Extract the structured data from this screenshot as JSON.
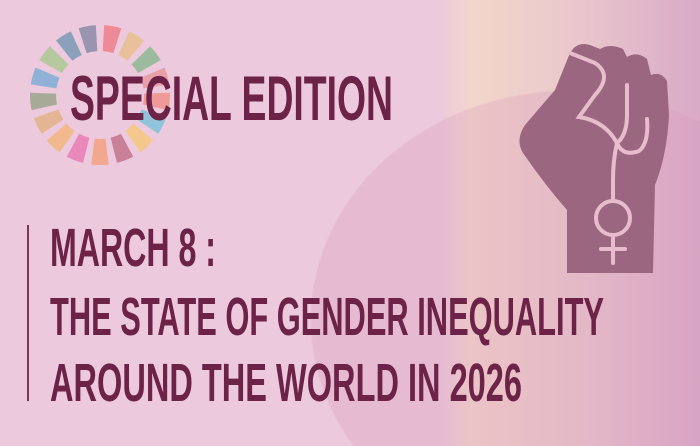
{
  "header": {
    "badge": "SPECIAL EDITION"
  },
  "title": {
    "lines": [
      "MARCH 8 :",
      "THE STATE OF GENDER INEQUALITY",
      "AROUND THE WORLD IN 2026"
    ]
  },
  "colors": {
    "background": "#ecc9dc",
    "text": "#6d2248",
    "fist": "#9a6680",
    "sdg_wheel": [
      "#ee8a96",
      "#e8c09a",
      "#9cbb9e",
      "#e8a0a8",
      "#f09a98",
      "#8fc4dc",
      "#f4c88c",
      "#c98099",
      "#f2a88e",
      "#ea88bc",
      "#f2b88e",
      "#e4b592",
      "#a8aa98",
      "#8fb1d6",
      "#b5c89e",
      "#8aa0bb",
      "#9a94b0"
    ]
  },
  "icons": {
    "logo": "sdg-wheel-icon",
    "hero": "raised-fist-female-symbol-icon"
  }
}
